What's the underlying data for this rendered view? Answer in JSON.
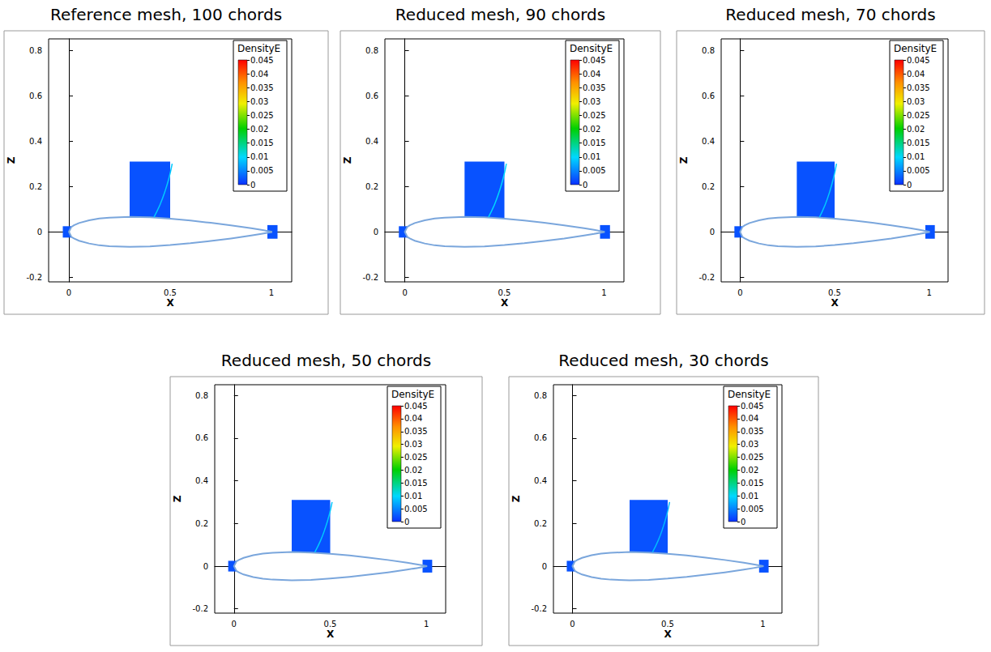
{
  "chart_data": [
    {
      "type": "contour",
      "title": "Reference mesh, 100 chords",
      "x_label": "X",
      "y_label": "Z",
      "xlim": [
        -0.1,
        1.1
      ],
      "xticks": [
        0,
        0.5,
        1
      ],
      "ylim": [
        -0.22,
        0.85
      ],
      "yticks": [
        -0.2,
        0,
        0.2,
        0.4,
        0.6,
        0.8
      ],
      "grid": false,
      "colorbar": {
        "label": "DensityE",
        "range": [
          0,
          0.045
        ],
        "ticks": [
          0,
          0.005,
          0.01,
          0.015,
          0.02,
          0.025,
          0.03,
          0.035,
          0.04,
          0.045
        ]
      },
      "airfoil": {
        "x": [
          0,
          0.0125,
          0.025,
          0.05,
          0.1,
          0.15,
          0.2,
          0.3,
          0.4,
          0.5,
          0.6,
          0.7,
          0.8,
          0.9,
          0.95,
          1
        ],
        "z_upper": [
          0,
          0.022,
          0.029,
          0.039,
          0.051,
          0.059,
          0.063,
          0.066,
          0.064,
          0.058,
          0.05,
          0.04,
          0.029,
          0.016,
          0.009,
          0.001
        ],
        "z_lower": [
          0,
          -0.022,
          -0.029,
          -0.039,
          -0.051,
          -0.059,
          -0.063,
          -0.066,
          -0.064,
          -0.058,
          -0.05,
          -0.04,
          -0.029,
          -0.016,
          -0.009,
          -0.001
        ]
      },
      "regions": [
        {
          "x": [
            0.3,
            0.5
          ],
          "z": [
            0.06,
            0.31
          ],
          "value": 0.002
        },
        {
          "x": [
            -0.03,
            0.02
          ],
          "z": [
            -0.025,
            0.025
          ],
          "value": 0.002
        },
        {
          "x": [
            0.98,
            1.03
          ],
          "z": [
            -0.03,
            0.03
          ],
          "value": 0.002
        }
      ],
      "shock": {
        "x": [
          0.42,
          0.45,
          0.475,
          0.495,
          0.51
        ],
        "z": [
          0.065,
          0.12,
          0.18,
          0.24,
          0.3
        ],
        "value": 0.009
      }
    },
    {
      "type": "contour",
      "title": "Reduced mesh, 90 chords",
      "x_label": "X",
      "y_label": "Z",
      "xlim": [
        -0.1,
        1.1
      ],
      "xticks": [
        0,
        0.5,
        1
      ],
      "ylim": [
        -0.22,
        0.85
      ],
      "yticks": [
        -0.2,
        0,
        0.2,
        0.4,
        0.6,
        0.8
      ],
      "grid": false,
      "colorbar": {
        "label": "DensityE",
        "range": [
          0,
          0.045
        ],
        "ticks": [
          0,
          0.005,
          0.01,
          0.015,
          0.02,
          0.025,
          0.03,
          0.035,
          0.04,
          0.045
        ]
      },
      "airfoil": {
        "x": [
          0,
          0.0125,
          0.025,
          0.05,
          0.1,
          0.15,
          0.2,
          0.3,
          0.4,
          0.5,
          0.6,
          0.7,
          0.8,
          0.9,
          0.95,
          1
        ],
        "z_upper": [
          0,
          0.022,
          0.029,
          0.039,
          0.051,
          0.059,
          0.063,
          0.066,
          0.064,
          0.058,
          0.05,
          0.04,
          0.029,
          0.016,
          0.009,
          0.001
        ],
        "z_lower": [
          0,
          -0.022,
          -0.029,
          -0.039,
          -0.051,
          -0.059,
          -0.063,
          -0.066,
          -0.064,
          -0.058,
          -0.05,
          -0.04,
          -0.029,
          -0.016,
          -0.009,
          -0.001
        ]
      },
      "regions": [
        {
          "x": [
            0.3,
            0.5
          ],
          "z": [
            0.06,
            0.31
          ],
          "value": 0.002
        },
        {
          "x": [
            -0.03,
            0.02
          ],
          "z": [
            -0.025,
            0.025
          ],
          "value": 0.002
        },
        {
          "x": [
            0.98,
            1.03
          ],
          "z": [
            -0.03,
            0.03
          ],
          "value": 0.002
        }
      ],
      "shock": {
        "x": [
          0.42,
          0.45,
          0.475,
          0.495,
          0.51
        ],
        "z": [
          0.065,
          0.12,
          0.18,
          0.24,
          0.3
        ],
        "value": 0.01
      }
    },
    {
      "type": "contour",
      "title": "Reduced mesh, 70 chords",
      "x_label": "X",
      "y_label": "Z",
      "xlim": [
        -0.1,
        1.1
      ],
      "xticks": [
        0,
        0.5,
        1
      ],
      "ylim": [
        -0.22,
        0.85
      ],
      "yticks": [
        -0.2,
        0,
        0.2,
        0.4,
        0.6,
        0.8
      ],
      "grid": false,
      "colorbar": {
        "label": "DensityE",
        "range": [
          0,
          0.045
        ],
        "ticks": [
          0,
          0.005,
          0.01,
          0.015,
          0.02,
          0.025,
          0.03,
          0.035,
          0.04,
          0.045
        ]
      },
      "airfoil": {
        "x": [
          0,
          0.0125,
          0.025,
          0.05,
          0.1,
          0.15,
          0.2,
          0.3,
          0.4,
          0.5,
          0.6,
          0.7,
          0.8,
          0.9,
          0.95,
          1
        ],
        "z_upper": [
          0,
          0.022,
          0.029,
          0.039,
          0.051,
          0.059,
          0.063,
          0.066,
          0.064,
          0.058,
          0.05,
          0.04,
          0.029,
          0.016,
          0.009,
          0.001
        ],
        "z_lower": [
          0,
          -0.022,
          -0.029,
          -0.039,
          -0.051,
          -0.059,
          -0.063,
          -0.066,
          -0.064,
          -0.058,
          -0.05,
          -0.04,
          -0.029,
          -0.016,
          -0.009,
          -0.001
        ]
      },
      "regions": [
        {
          "x": [
            0.3,
            0.5
          ],
          "z": [
            0.06,
            0.31
          ],
          "value": 0.002
        },
        {
          "x": [
            -0.03,
            0.02
          ],
          "z": [
            -0.025,
            0.025
          ],
          "value": 0.002
        },
        {
          "x": [
            0.98,
            1.03
          ],
          "z": [
            -0.03,
            0.03
          ],
          "value": 0.002
        }
      ],
      "shock": {
        "x": [
          0.42,
          0.45,
          0.475,
          0.495,
          0.51
        ],
        "z": [
          0.065,
          0.12,
          0.18,
          0.24,
          0.3
        ],
        "value": 0.009
      }
    },
    {
      "type": "contour",
      "title": "Reduced mesh, 50 chords",
      "x_label": "X",
      "y_label": "Z",
      "xlim": [
        -0.1,
        1.1
      ],
      "xticks": [
        0,
        0.5,
        1
      ],
      "ylim": [
        -0.22,
        0.85
      ],
      "yticks": [
        -0.2,
        0,
        0.2,
        0.4,
        0.6,
        0.8
      ],
      "grid": false,
      "colorbar": {
        "label": "DensityE",
        "range": [
          0,
          0.045
        ],
        "ticks": [
          0,
          0.005,
          0.01,
          0.015,
          0.02,
          0.025,
          0.03,
          0.035,
          0.04,
          0.045
        ]
      },
      "airfoil": {
        "x": [
          0,
          0.0125,
          0.025,
          0.05,
          0.1,
          0.15,
          0.2,
          0.3,
          0.4,
          0.5,
          0.6,
          0.7,
          0.8,
          0.9,
          0.95,
          1
        ],
        "z_upper": [
          0,
          0.022,
          0.029,
          0.039,
          0.051,
          0.059,
          0.063,
          0.066,
          0.064,
          0.058,
          0.05,
          0.04,
          0.029,
          0.016,
          0.009,
          0.001
        ],
        "z_lower": [
          0,
          -0.022,
          -0.029,
          -0.039,
          -0.051,
          -0.059,
          -0.063,
          -0.066,
          -0.064,
          -0.058,
          -0.05,
          -0.04,
          -0.029,
          -0.016,
          -0.009,
          -0.001
        ]
      },
      "regions": [
        {
          "x": [
            0.3,
            0.5
          ],
          "z": [
            0.06,
            0.31
          ],
          "value": 0.002
        },
        {
          "x": [
            -0.03,
            0.02
          ],
          "z": [
            -0.025,
            0.025
          ],
          "value": 0.002
        },
        {
          "x": [
            0.98,
            1.03
          ],
          "z": [
            -0.03,
            0.03
          ],
          "value": 0.002
        }
      ],
      "shock": {
        "x": [
          0.42,
          0.45,
          0.475,
          0.495,
          0.51
        ],
        "z": [
          0.065,
          0.12,
          0.18,
          0.24,
          0.3
        ],
        "value": 0.009
      }
    },
    {
      "type": "contour",
      "title": "Reduced mesh, 30 chords",
      "x_label": "X",
      "y_label": "Z",
      "xlim": [
        -0.1,
        1.1
      ],
      "xticks": [
        0,
        0.5,
        1
      ],
      "ylim": [
        -0.22,
        0.85
      ],
      "yticks": [
        -0.2,
        0,
        0.2,
        0.4,
        0.6,
        0.8
      ],
      "grid": false,
      "colorbar": {
        "label": "DensityE",
        "range": [
          0,
          0.045
        ],
        "ticks": [
          0,
          0.005,
          0.01,
          0.015,
          0.02,
          0.025,
          0.03,
          0.035,
          0.04,
          0.045
        ]
      },
      "airfoil": {
        "x": [
          0,
          0.0125,
          0.025,
          0.05,
          0.1,
          0.15,
          0.2,
          0.3,
          0.4,
          0.5,
          0.6,
          0.7,
          0.8,
          0.9,
          0.95,
          1
        ],
        "z_upper": [
          0,
          0.022,
          0.029,
          0.039,
          0.051,
          0.059,
          0.063,
          0.066,
          0.064,
          0.058,
          0.05,
          0.04,
          0.029,
          0.016,
          0.009,
          0.001
        ],
        "z_lower": [
          0,
          -0.022,
          -0.029,
          -0.039,
          -0.051,
          -0.059,
          -0.063,
          -0.066,
          -0.064,
          -0.058,
          -0.05,
          -0.04,
          -0.029,
          -0.016,
          -0.009,
          -0.001
        ]
      },
      "regions": [
        {
          "x": [
            0.3,
            0.5
          ],
          "z": [
            0.06,
            0.31
          ],
          "value": 0.002
        },
        {
          "x": [
            -0.03,
            0.02
          ],
          "z": [
            -0.025,
            0.025
          ],
          "value": 0.002
        },
        {
          "x": [
            0.98,
            1.03
          ],
          "z": [
            -0.03,
            0.03
          ],
          "value": 0.002
        }
      ],
      "shock": {
        "x": [
          0.42,
          0.45,
          0.475,
          0.495,
          0.51
        ],
        "z": [
          0.065,
          0.12,
          0.18,
          0.24,
          0.3
        ],
        "value": 0.008
      }
    }
  ]
}
